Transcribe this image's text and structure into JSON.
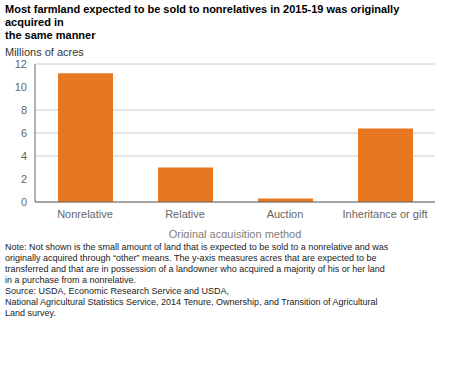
{
  "chart_data": {
    "type": "bar",
    "title": "Most farmland expected to be sold to nonrelatives in 2015-19 was originally acquired in\nthe same manner",
    "xlabel": "Original acquisition method",
    "ylabel": "Millions of acres",
    "categories": [
      "Nonrelative",
      "Relative",
      "Auction",
      "Inheritance or gift"
    ],
    "values": [
      11.2,
      3.0,
      0.3,
      6.4
    ],
    "color": "#E87722",
    "ylim": [
      0,
      12
    ],
    "yticks": [
      0,
      2,
      4,
      6,
      8,
      10,
      12
    ],
    "grid": true,
    "annotations": [
      "Note: Not shown is the small amount of land that is expected to be sold to a nonrelative and was",
      "originally acquired through “other” means. The y-axis measures acres that are expected to be",
      "transferred and that are in possession of a landowner who acquired a majority of his or her land",
      "in a purchase from a nonrelative.",
      "Source: USDA, Economic Research Service and USDA,",
      "National Agricultural Statistics Service, 2014 Tenure, Ownership, and Transition of Agricultural",
      "Land survey."
    ]
  }
}
